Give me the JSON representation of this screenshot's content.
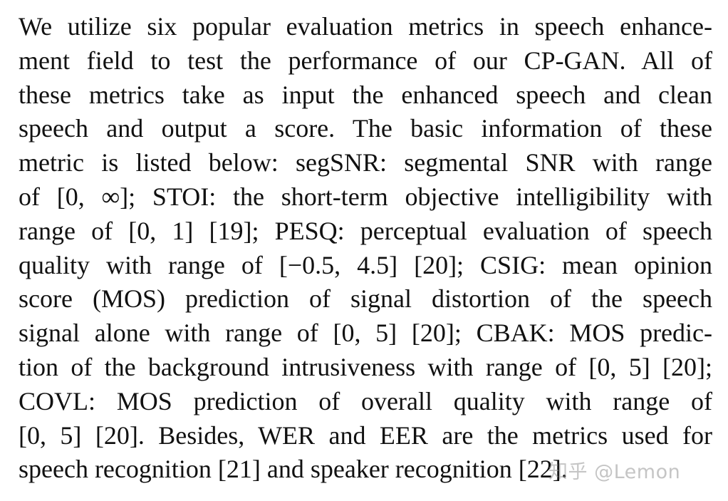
{
  "paragraph": {
    "lines": [
      "We utilize six popular evaluation metrics in speech enhance-",
      "ment field to test the performance of our CP-GAN. All of",
      "these metrics take as input the enhanced speech and clean",
      "speech and output a score.  The basic information of these",
      "metric is listed below:  segSNR: segmental SNR with range",
      "of [0, ∞]; STOI: the short-term objective intelligibility with",
      "range of [0, 1] [19]; PESQ: perceptual evaluation of speech",
      "quality with range of [−0.5, 4.5] [20]; CSIG: mean opinion",
      "score (MOS) prediction of signal distortion of the speech",
      "signal alone with range of [0, 5] [20]; CBAK: MOS predic-",
      "tion of the background intrusiveness with range of [0, 5] [20];",
      "COVL: MOS prediction of overall quality with range of",
      "[0, 5] [20].  Besides, WER and EER are the metrics used for",
      "speech recognition [21] and speaker recognition [22]."
    ]
  },
  "watermark": {
    "text": "知乎 @Lemon"
  }
}
